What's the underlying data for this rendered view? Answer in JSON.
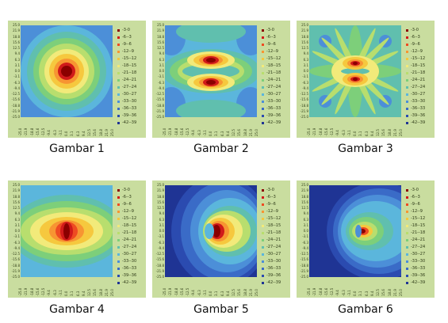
{
  "colors": {
    "panel_background": "#c9dd9f",
    "levels": [
      "#8a0000",
      "#d01a1a",
      "#ee4b22",
      "#f79532",
      "#f6c83e",
      "#f2ea7a",
      "#b8de6e",
      "#7dcf7a",
      "#60bfae",
      "#5bb6dc",
      "#4c8fd8",
      "#3a6bc7",
      "#2b4bb0",
      "#1f3494",
      "#17236f"
    ]
  },
  "legend": [
    "-3-0",
    "-6--3",
    "-9--6",
    "-12--9",
    "-15--12",
    "-18--15",
    "-21--18",
    "-24--21",
    "-27--24",
    "-30--27",
    "-33--30",
    "-36--33",
    "-39--36",
    "-42--39"
  ],
  "y_ticks": [
    "25.0",
    "21.9",
    "18.8",
    "15.6",
    "12.5",
    "9.4",
    "6.3",
    "3.1",
    "0.0",
    "-3.1",
    "-6.3",
    "-9.4",
    "-12.5",
    "-15.6",
    "-18.8",
    "-21.9",
    "-25.0"
  ],
  "x_ticks": [
    "-25.0",
    "-21.9",
    "-18.8",
    "-15.6",
    "-12.5",
    "-9.4",
    "-6.3",
    "-3.1",
    "0.0",
    "3.1",
    "6.3",
    "9.4",
    "12.5",
    "15.6",
    "18.8",
    "21.9",
    "25.0"
  ],
  "figures": [
    {
      "caption": "Gambar 1",
      "pattern": "concentric"
    },
    {
      "caption": "Gambar 2",
      "pattern": "two-lobes"
    },
    {
      "caption": "Gambar 3",
      "pattern": "multi-lobes"
    },
    {
      "caption": "Gambar 4",
      "pattern": "broadside"
    },
    {
      "caption": "Gambar 5",
      "pattern": "forward-beam"
    },
    {
      "caption": "Gambar 6",
      "pattern": "focused-beam"
    }
  ]
}
